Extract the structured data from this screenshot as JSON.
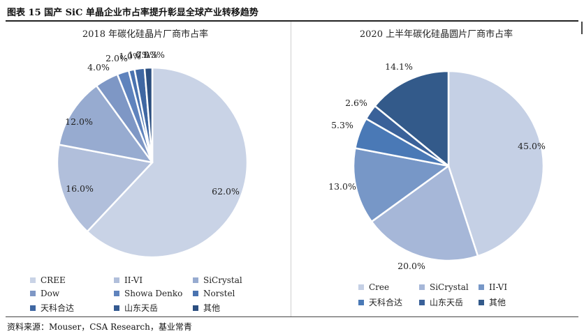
{
  "figure": {
    "title": "图表 15  国产 SiC 单晶企业市占率提升彰显全球产业转移趋势",
    "source": "资料来源：Mouser，CSA Research，基业常青"
  },
  "chart_data": [
    {
      "type": "pie",
      "title": "2018 年碳化硅晶片厂商市占率",
      "legend_position": "bottom",
      "slices": [
        {
          "name": "CREE",
          "value": 62.0,
          "label": "62.0%",
          "color": "#c9d3e6"
        },
        {
          "name": "II-VI",
          "value": 16.0,
          "label": "16.0%",
          "color": "#b1bfdb"
        },
        {
          "name": "SiCrystal",
          "value": 12.0,
          "label": "12.0%",
          "color": "#97abd0"
        },
        {
          "name": "Dow",
          "value": 4.0,
          "label": "4.0%",
          "color": "#7e97c5"
        },
        {
          "name": "Showa Denko",
          "value": 2.0,
          "label": "2.0%",
          "color": "#5f83bd"
        },
        {
          "name": "Norstel",
          "value": 1.0,
          "label": "1.0%",
          "color": "#4a73b0"
        },
        {
          "name": "天科合达",
          "value": 1.7,
          "label": "1.7%",
          "color": "#3f67a2"
        },
        {
          "name": "山东天岳",
          "value": 0.0,
          "label": "0.0%",
          "color": "#345a91"
        },
        {
          "name": "其他",
          "value": 1.3,
          "label": "1.3%",
          "color": "#2c4f80"
        }
      ]
    },
    {
      "type": "pie",
      "title": "2020 上半年碳化硅晶圆片厂商市占率",
      "legend_position": "bottom",
      "slices": [
        {
          "name": "Cree",
          "value": 45.0,
          "label": "45.0%",
          "color": "#c5d0e5"
        },
        {
          "name": "SiCrystal",
          "value": 20.0,
          "label": "20.0%",
          "color": "#a6b7d8"
        },
        {
          "name": "II-VI",
          "value": 13.0,
          "label": "13.0%",
          "color": "#7797c7"
        },
        {
          "name": "天科合达",
          "value": 5.3,
          "label": "5.3%",
          "color": "#4a79b6"
        },
        {
          "name": "山东天岳",
          "value": 2.6,
          "label": "2.6%",
          "color": "#3a6199"
        },
        {
          "name": "其他",
          "value": 14.1,
          "label": "14.1%",
          "color": "#335a8a"
        }
      ]
    }
  ]
}
